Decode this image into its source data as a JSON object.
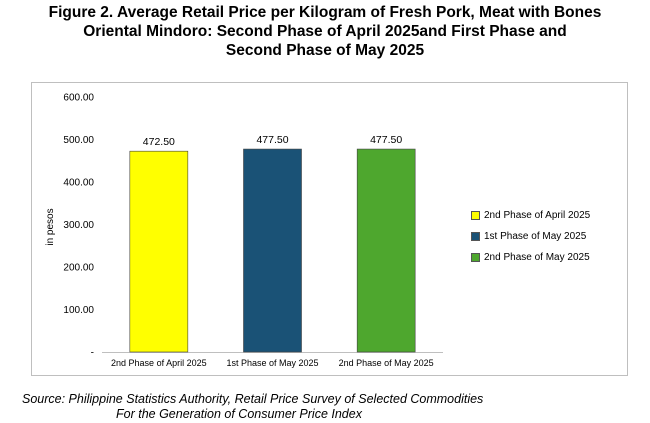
{
  "title_lines": [
    "Figure 2. Average Retail Price per Kilogram of Fresh Pork, Meat with Bones",
    "Oriental Mindoro: Second Phase of April 2025and First Phase and",
    "Second Phase of May 2025"
  ],
  "source_lines": [
    "Source: Philippine Statistics Authority, Retail Price Survey of Selected Commodities",
    "For the Generation of Consumer Price Index"
  ],
  "chart_data": {
    "type": "bar",
    "categories": [
      "2nd Phase of April 2025",
      "1st Phase of May 2025",
      "2nd Phase of May 2025"
    ],
    "values": [
      472.5,
      477.5,
      477.5
    ],
    "value_labels": [
      "472.50",
      "477.50",
      "477.50"
    ],
    "colors": [
      "#ffff00",
      "#1a5276",
      "#4ea72e"
    ],
    "ylabel": "in pesos",
    "xlabel": "",
    "ylim": [
      0,
      600
    ],
    "yticks": [
      600,
      500,
      400,
      300,
      200,
      100,
      0
    ],
    "ytick_labels": [
      "600.00",
      "500.00",
      "400.00",
      "300.00",
      "200.00",
      "100.00",
      "-"
    ],
    "legend": {
      "position": "right",
      "entries": [
        "2nd Phase of April 2025",
        "1st Phase of May 2025",
        "2nd Phase of May 2025"
      ]
    },
    "grid": false
  }
}
